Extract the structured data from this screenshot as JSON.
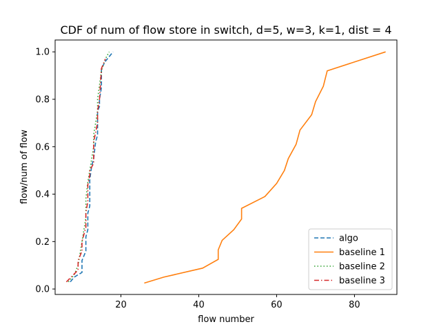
{
  "chart_data": {
    "type": "line",
    "title": "CDF of num of flow store in switch, d=5, w=3, k=1, dist = 4",
    "xlabel": "flow number",
    "ylabel": "flow/num of flow",
    "xlim": [
      3.1,
      90.9
    ],
    "ylim": [
      -0.023,
      1.05
    ],
    "xticks": [
      20,
      40,
      60,
      80
    ],
    "yticks": [
      0.0,
      0.2,
      0.4,
      0.6,
      0.8,
      1.0
    ],
    "grid": false,
    "legend_position": "lower-right",
    "series": [
      {
        "name": "algo",
        "color": "#1f77b4",
        "style": "dashed",
        "x": [
          7,
          8,
          9,
          10,
          10,
          11,
          11,
          11.5,
          11.5,
          12,
          12,
          12,
          12.5,
          13,
          13.5,
          14,
          14,
          14,
          14.5,
          14.5,
          15,
          15,
          16,
          18
        ],
        "y": [
          0.03,
          0.05,
          0.06,
          0.07,
          0.12,
          0.16,
          0.22,
          0.25,
          0.32,
          0.35,
          0.4,
          0.46,
          0.52,
          0.55,
          0.62,
          0.65,
          0.7,
          0.75,
          0.77,
          0.8,
          0.85,
          0.93,
          0.96,
          1.0
        ]
      },
      {
        "name": "baseline 1",
        "color": "#ff7f0e",
        "style": "solid",
        "x": [
          26,
          31,
          41,
          45,
          45,
          46,
          49,
          51,
          51,
          57,
          60,
          62,
          63,
          65,
          66,
          69,
          70,
          72,
          73,
          88
        ],
        "y": [
          0.025,
          0.05,
          0.088,
          0.125,
          0.165,
          0.205,
          0.25,
          0.295,
          0.34,
          0.39,
          0.445,
          0.5,
          0.55,
          0.61,
          0.67,
          0.735,
          0.79,
          0.855,
          0.92,
          1.0
        ]
      },
      {
        "name": "baseline 2",
        "color": "#2ca02c",
        "style": "dotted",
        "x": [
          6.5,
          8,
          9,
          9.5,
          10,
          10.5,
          11,
          11,
          11.5,
          12,
          12.5,
          13,
          13,
          13.5,
          14,
          14,
          14.5,
          15,
          16,
          17
        ],
        "y": [
          0.03,
          0.06,
          0.1,
          0.15,
          0.2,
          0.25,
          0.3,
          0.38,
          0.45,
          0.5,
          0.55,
          0.6,
          0.65,
          0.7,
          0.75,
          0.8,
          0.86,
          0.92,
          0.97,
          1.0
        ]
      },
      {
        "name": "baseline 3",
        "color": "#d62728",
        "style": "dashdot",
        "x": [
          6,
          9,
          9,
          10,
          10,
          10.5,
          11,
          11,
          11.5,
          11.5,
          12,
          12,
          13,
          13,
          13,
          13.5,
          14,
          14,
          14.5,
          15,
          16
        ],
        "y": [
          0.03,
          0.08,
          0.12,
          0.16,
          0.2,
          0.23,
          0.26,
          0.32,
          0.37,
          0.44,
          0.48,
          0.5,
          0.53,
          0.58,
          0.62,
          0.66,
          0.7,
          0.75,
          0.8,
          0.93,
          0.97
        ]
      }
    ]
  }
}
